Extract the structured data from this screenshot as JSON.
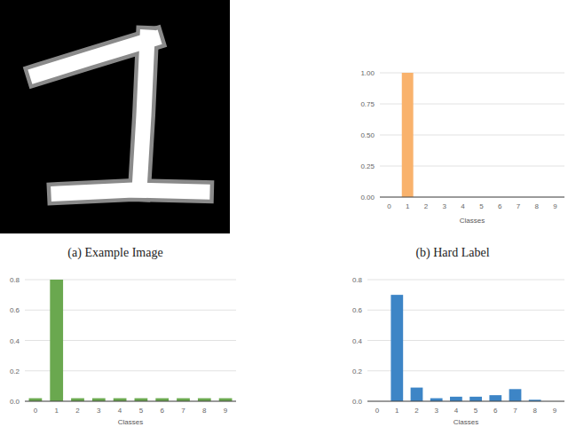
{
  "image": {
    "caption": "(a) Example Image"
  },
  "chart_data": [
    {
      "type": "bar",
      "title": "(b) Hard Label",
      "x_label": "Classes",
      "categories": [
        "0",
        "1",
        "2",
        "3",
        "4",
        "5",
        "6",
        "7",
        "8",
        "9"
      ],
      "values": [
        0,
        1,
        0,
        0,
        0,
        0,
        0,
        0,
        0,
        0
      ],
      "color": "#f9b26c",
      "ylim": [
        0,
        1
      ],
      "yticks": [
        {
          "value": 0,
          "label": "0.00"
        },
        {
          "value": 0.25,
          "label": "0.25"
        },
        {
          "value": 0.5,
          "label": "0.50"
        },
        {
          "value": 0.75,
          "label": "0.75"
        },
        {
          "value": 1,
          "label": "1.00"
        }
      ],
      "grid": true
    },
    {
      "type": "bar",
      "x_label": "Classes",
      "categories": [
        "0",
        "1",
        "2",
        "3",
        "4",
        "5",
        "6",
        "7",
        "8",
        "9"
      ],
      "values": [
        0.02,
        0.8,
        0.02,
        0.02,
        0.02,
        0.02,
        0.02,
        0.02,
        0.02,
        0.02
      ],
      "color": "#6aa84f",
      "ylim": [
        0,
        0.8
      ],
      "yticks": [
        {
          "value": 0,
          "label": "0.0"
        },
        0.2,
        0.4,
        0.6,
        0.8
      ],
      "grid": true
    },
    {
      "type": "bar",
      "x_label": "Classes",
      "categories": [
        "0",
        "1",
        "2",
        "3",
        "4",
        "5",
        "6",
        "7",
        "8",
        "9"
      ],
      "values": [
        0,
        0.7,
        0.09,
        0.02,
        0.03,
        0.03,
        0.04,
        0.08,
        0.01,
        0
      ],
      "color": "#3d85c6",
      "ylim": [
        0,
        0.8
      ],
      "yticks": [
        {
          "value": 0,
          "label": "0.0"
        },
        0.2,
        0.4,
        0.6,
        0.8
      ],
      "grid": true
    }
  ]
}
